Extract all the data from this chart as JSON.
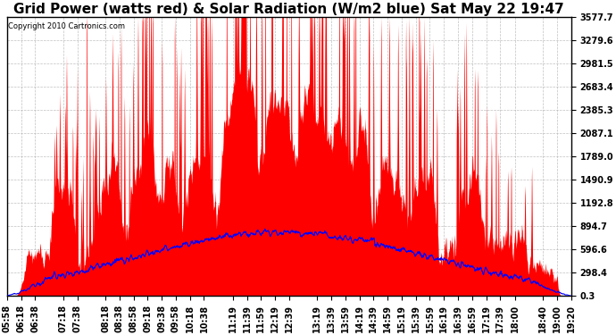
{
  "title": "Grid Power (watts red) & Solar Radiation (W/m2 blue) Sat May 22 19:47",
  "copyright": "Copyright 2010 Cartronics.com",
  "ylim_min": 0.3,
  "ylim_max": 3577.7,
  "yticks": [
    0.3,
    298.4,
    596.6,
    894.7,
    1192.8,
    1490.9,
    1789.0,
    2087.1,
    2385.3,
    2683.4,
    2981.5,
    3279.6,
    3577.7
  ],
  "bg_color": "#ffffff",
  "plot_bg_color": "#ffffff",
  "grid_color": "#b0b0b0",
  "red_color": "#ff0000",
  "blue_color": "#0000ff",
  "title_fontsize": 11,
  "tick_fontsize": 7,
  "x_tick_labels": [
    "05:58",
    "06:18",
    "06:38",
    "07:18",
    "07:38",
    "08:18",
    "08:38",
    "08:58",
    "09:18",
    "09:38",
    "09:58",
    "10:18",
    "10:38",
    "11:19",
    "11:39",
    "11:59",
    "12:19",
    "12:39",
    "13:19",
    "13:39",
    "13:59",
    "14:19",
    "14:39",
    "14:59",
    "15:19",
    "15:39",
    "15:59",
    "16:19",
    "16:39",
    "16:59",
    "17:19",
    "17:39",
    "18:00",
    "18:40",
    "19:00",
    "19:20"
  ]
}
